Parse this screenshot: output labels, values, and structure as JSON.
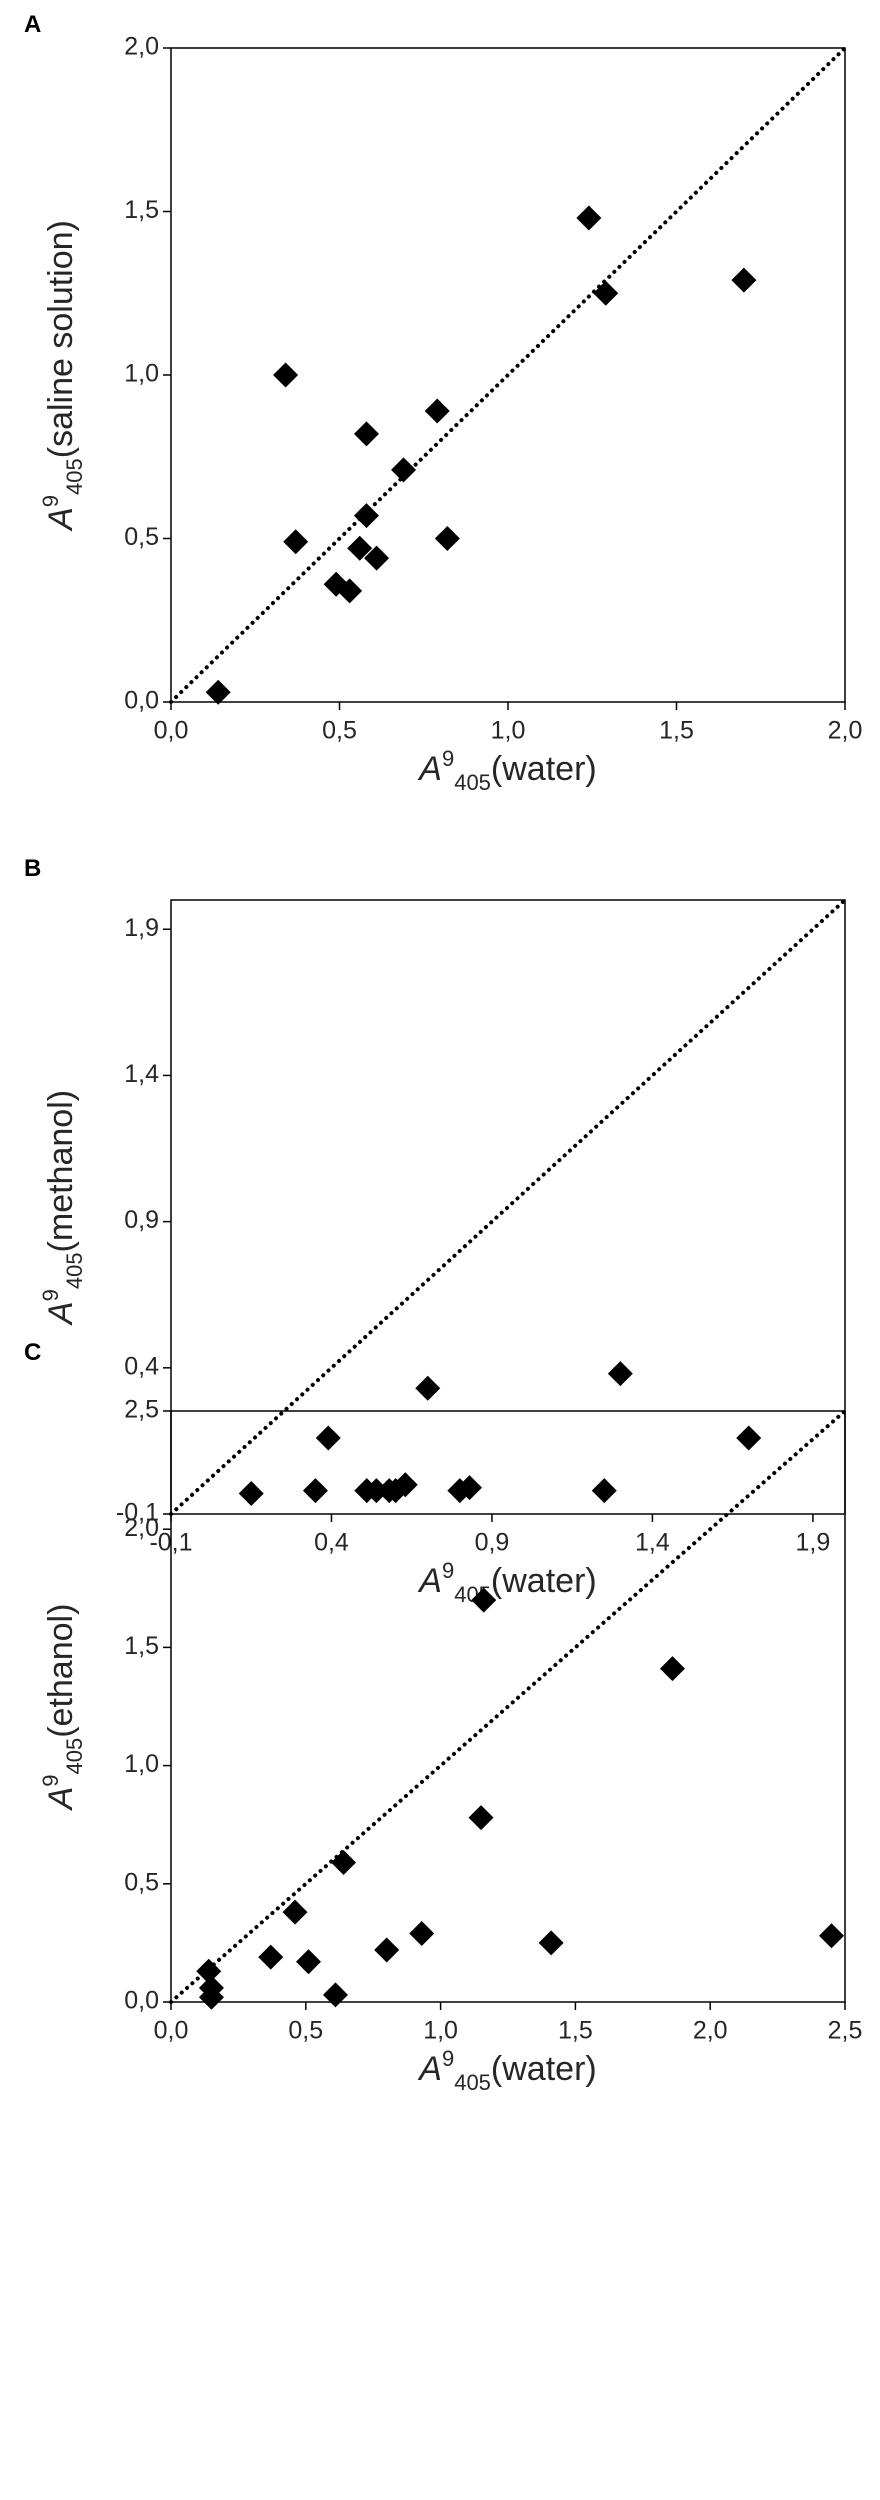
{
  "chart_data": [
    {
      "type": "scatter",
      "panel_label": "A",
      "x_label": {
        "base": "A",
        "sup": "9",
        "sub": "405",
        "text": "(water)"
      },
      "y_label": {
        "base": "A",
        "sup": "9",
        "sub": "405",
        "text": "(saline solution)"
      },
      "color": "#000000",
      "x": [
        0.14,
        0.34,
        0.37,
        0.49,
        0.53,
        0.56,
        0.58,
        0.58,
        0.61,
        0.69,
        0.79,
        0.82,
        1.24,
        1.29,
        1.7
      ],
      "values": [
        0.03,
        1.0,
        0.49,
        0.36,
        0.34,
        0.47,
        0.57,
        0.82,
        0.44,
        0.71,
        0.89,
        0.5,
        1.48,
        1.25,
        1.29
      ],
      "xlim": [
        0,
        2.0
      ],
      "ylim": [
        0,
        2.0
      ],
      "xticks": [
        {
          "value": 0,
          "label": "0,0"
        },
        {
          "value": 0.5,
          "label": "0,5"
        },
        {
          "value": 1.0,
          "label": "1,0"
        },
        {
          "value": 1.5,
          "label": "1,5"
        },
        {
          "value": 2.0,
          "label": "2,0"
        }
      ],
      "yticks": [
        {
          "value": 0,
          "label": "0,0"
        },
        {
          "value": 0.5,
          "label": "0,5"
        },
        {
          "value": 1.0,
          "label": "1,0"
        },
        {
          "value": 1.5,
          "label": "1,5"
        },
        {
          "value": 2.0,
          "label": "2,0"
        }
      ]
    },
    {
      "type": "scatter",
      "panel_label": "B",
      "x_label": {
        "base": "A",
        "sup": "9",
        "sub": "405",
        "text": "(water)"
      },
      "y_label": {
        "base": "A",
        "sup": "9",
        "sub": "405",
        "text": "(methanol)"
      },
      "color": "#000000",
      "x": [
        0.15,
        0.35,
        0.39,
        0.51,
        0.54,
        0.58,
        0.6,
        0.63,
        0.7,
        0.8,
        0.83,
        1.25,
        1.3,
        1.7
      ],
      "values": [
        -0.03,
        -0.02,
        0.16,
        -0.02,
        -0.02,
        -0.02,
        -0.02,
        0.0,
        0.33,
        -0.02,
        -0.01,
        -0.02,
        0.38,
        0.16
      ],
      "xlim": [
        -0.1,
        2.0
      ],
      "ylim": [
        -0.1,
        2.0
      ],
      "xticks": [
        {
          "value": -0.1,
          "label": "-0,1"
        },
        {
          "value": 0.4,
          "label": "0,4"
        },
        {
          "value": 0.9,
          "label": "0,9"
        },
        {
          "value": 1.4,
          "label": "1,4"
        },
        {
          "value": 1.9,
          "label": "1,9"
        }
      ],
      "yticks": [
        {
          "value": -0.1,
          "label": "-0,1"
        },
        {
          "value": 0.4,
          "label": "0,4"
        },
        {
          "value": 0.9,
          "label": "0,9"
        },
        {
          "value": 1.4,
          "label": "1,4"
        },
        {
          "value": 1.9,
          "label": "1,9"
        }
      ]
    },
    {
      "type": "scatter",
      "panel_label": "C",
      "x_label": {
        "base": "A",
        "sup": "9",
        "sub": "405",
        "text": "(water)"
      },
      "y_label": {
        "base": "A",
        "sup": "9",
        "sub": "405",
        "text": "(ethanol)"
      },
      "color": "#000000",
      "x": [
        0.14,
        0.15,
        0.15,
        0.37,
        0.46,
        0.51,
        0.61,
        0.64,
        0.8,
        0.93,
        1.15,
        1.16,
        1.41,
        1.86,
        2.45
      ],
      "values": [
        0.13,
        0.02,
        0.06,
        0.19,
        0.38,
        0.17,
        0.03,
        0.59,
        0.22,
        0.29,
        0.78,
        1.7,
        0.25,
        1.41,
        0.28
      ],
      "xlim": [
        0,
        2.5
      ],
      "ylim": [
        0,
        2.5
      ],
      "xticks": [
        {
          "value": 0,
          "label": "0,0"
        },
        {
          "value": 0.5,
          "label": "0,5"
        },
        {
          "value": 1.0,
          "label": "1,0"
        },
        {
          "value": 1.5,
          "label": "1,5"
        },
        {
          "value": 2.0,
          "label": "2,0"
        },
        {
          "value": 2.5,
          "label": "2,5"
        }
      ],
      "yticks": [
        {
          "value": 0,
          "label": "0,0"
        },
        {
          "value": 0.5,
          "label": "0,5"
        },
        {
          "value": 1.0,
          "label": "1,0"
        },
        {
          "value": 1.5,
          "label": "1,5"
        },
        {
          "value": 2.0,
          "label": "2,0"
        },
        {
          "value": 2.5,
          "label": "2,5"
        }
      ]
    }
  ]
}
